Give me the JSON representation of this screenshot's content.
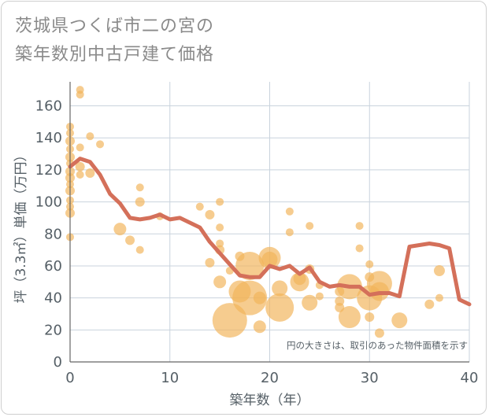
{
  "chart_data": {
    "type": "scatter",
    "title_lines": [
      "茨城県つくば市二の宮の",
      "築年数別中古戸建て価格"
    ],
    "xlabel": "築年数（年）",
    "ylabel": "坪（3.3㎡）単価（万円）",
    "xlim": [
      0,
      40
    ],
    "ylim": [
      0,
      175
    ],
    "xticks": [
      0,
      10,
      20,
      30,
      40
    ],
    "yticks": [
      0,
      20,
      40,
      60,
      80,
      100,
      120,
      140,
      160
    ],
    "grid": true,
    "annotation": "円の大きさは、取引のあった物件面積を示す",
    "colors": {
      "bubble": "#f2b45a",
      "line": "#d4705a",
      "grid": "#c9d3dd",
      "axis": "#666666"
    },
    "bubbles": [
      {
        "x": 0,
        "y": 147,
        "s": 5
      },
      {
        "x": 0,
        "y": 143,
        "s": 5
      },
      {
        "x": 0,
        "y": 138,
        "s": 6
      },
      {
        "x": 0,
        "y": 133,
        "s": 5
      },
      {
        "x": 0,
        "y": 128,
        "s": 6
      },
      {
        "x": 0,
        "y": 124,
        "s": 5
      },
      {
        "x": 0,
        "y": 119,
        "s": 6
      },
      {
        "x": 0,
        "y": 115,
        "s": 6
      },
      {
        "x": 0,
        "y": 111,
        "s": 5
      },
      {
        "x": 0,
        "y": 107,
        "s": 6
      },
      {
        "x": 0,
        "y": 101,
        "s": 5
      },
      {
        "x": 0,
        "y": 97,
        "s": 5
      },
      {
        "x": 0,
        "y": 93,
        "s": 6
      },
      {
        "x": 0,
        "y": 78,
        "s": 5
      },
      {
        "x": 1,
        "y": 170,
        "s": 5
      },
      {
        "x": 1,
        "y": 167,
        "s": 5
      },
      {
        "x": 1,
        "y": 134,
        "s": 5
      },
      {
        "x": 1,
        "y": 122,
        "s": 6
      },
      {
        "x": 1,
        "y": 117,
        "s": 5
      },
      {
        "x": 2,
        "y": 141,
        "s": 5
      },
      {
        "x": 2,
        "y": 118,
        "s": 6
      },
      {
        "x": 3,
        "y": 136,
        "s": 5
      },
      {
        "x": 5,
        "y": 83,
        "s": 8
      },
      {
        "x": 6,
        "y": 76,
        "s": 6
      },
      {
        "x": 7,
        "y": 109,
        "s": 5
      },
      {
        "x": 7,
        "y": 100,
        "s": 6
      },
      {
        "x": 7,
        "y": 70,
        "s": 5
      },
      {
        "x": 9,
        "y": 91,
        "s": 5
      },
      {
        "x": 13,
        "y": 97,
        "s": 5
      },
      {
        "x": 14,
        "y": 92,
        "s": 6
      },
      {
        "x": 14,
        "y": 62,
        "s": 6
      },
      {
        "x": 15,
        "y": 100,
        "s": 5
      },
      {
        "x": 15,
        "y": 84,
        "s": 5
      },
      {
        "x": 15,
        "y": 74,
        "s": 5
      },
      {
        "x": 15,
        "y": 70,
        "s": 6
      },
      {
        "x": 15,
        "y": 50,
        "s": 8
      },
      {
        "x": 16,
        "y": 57,
        "s": 5
      },
      {
        "x": 16,
        "y": 26,
        "s": 22
      },
      {
        "x": 17,
        "y": 66,
        "s": 6
      },
      {
        "x": 17,
        "y": 44,
        "s": 14
      },
      {
        "x": 18,
        "y": 60,
        "s": 18
      },
      {
        "x": 18,
        "y": 40,
        "s": 22
      },
      {
        "x": 19,
        "y": 40,
        "s": 8
      },
      {
        "x": 19,
        "y": 22,
        "s": 8
      },
      {
        "x": 20,
        "y": 65,
        "s": 14
      },
      {
        "x": 20,
        "y": 64,
        "s": 10
      },
      {
        "x": 21,
        "y": 46,
        "s": 10
      },
      {
        "x": 21,
        "y": 34,
        "s": 18
      },
      {
        "x": 22,
        "y": 94,
        "s": 5
      },
      {
        "x": 22,
        "y": 81,
        "s": 5
      },
      {
        "x": 23,
        "y": 52,
        "s": 8
      },
      {
        "x": 23,
        "y": 50,
        "s": 12
      },
      {
        "x": 24,
        "y": 85,
        "s": 5
      },
      {
        "x": 24,
        "y": 58,
        "s": 6
      },
      {
        "x": 24,
        "y": 37,
        "s": 10
      },
      {
        "x": 25,
        "y": 48,
        "s": 5
      },
      {
        "x": 25,
        "y": 41,
        "s": 5
      },
      {
        "x": 27,
        "y": 44,
        "s": 6
      },
      {
        "x": 27,
        "y": 38,
        "s": 6
      },
      {
        "x": 27,
        "y": 34,
        "s": 6
      },
      {
        "x": 28,
        "y": 47,
        "s": 16
      },
      {
        "x": 28,
        "y": 28,
        "s": 14
      },
      {
        "x": 29,
        "y": 85,
        "s": 5
      },
      {
        "x": 29,
        "y": 71,
        "s": 5
      },
      {
        "x": 30,
        "y": 61,
        "s": 5
      },
      {
        "x": 30,
        "y": 53,
        "s": 6
      },
      {
        "x": 30,
        "y": 40,
        "s": 16
      },
      {
        "x": 30,
        "y": 28,
        "s": 6
      },
      {
        "x": 31,
        "y": 49,
        "s": 16
      },
      {
        "x": 31,
        "y": 44,
        "s": 12
      },
      {
        "x": 31,
        "y": 18,
        "s": 6
      },
      {
        "x": 33,
        "y": 26,
        "s": 10
      },
      {
        "x": 36,
        "y": 36,
        "s": 6
      },
      {
        "x": 37,
        "y": 57,
        "s": 7
      },
      {
        "x": 37,
        "y": 40,
        "s": 5
      }
    ],
    "series": [
      {
        "x": [
          0,
          1,
          2,
          3,
          4,
          5,
          6,
          7,
          8,
          9,
          10,
          11,
          12,
          13,
          14,
          15,
          16,
          17,
          18,
          19,
          20,
          21,
          22,
          23,
          24,
          25,
          26,
          27,
          28,
          29,
          30,
          31,
          32,
          33,
          34,
          35,
          36,
          37,
          38,
          39,
          40
        ],
        "values": [
          122,
          127,
          125,
          117,
          105,
          99,
          90,
          89,
          90,
          92,
          89,
          90,
          87,
          84,
          75,
          68,
          61,
          54,
          53,
          53,
          60,
          58,
          60,
          55,
          59,
          50,
          47,
          48,
          47,
          47,
          42,
          43,
          43,
          41,
          72,
          73,
          74,
          73,
          71,
          39,
          36
        ]
      }
    ]
  }
}
